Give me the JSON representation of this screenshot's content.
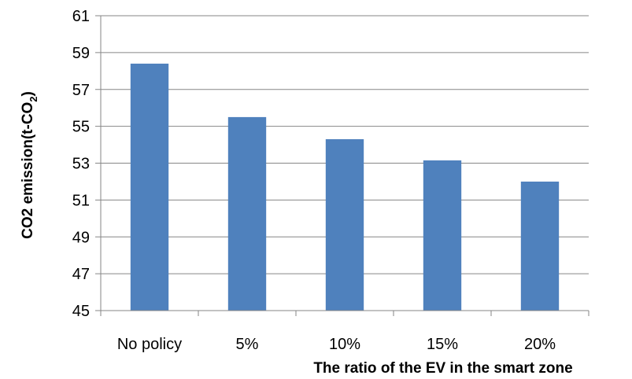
{
  "chart_data": {
    "type": "bar",
    "title": "",
    "categories": [
      "No policy",
      "5%",
      "10%",
      "15%",
      "20%"
    ],
    "values": [
      58.4,
      55.5,
      54.3,
      53.15,
      52.0
    ],
    "yticks": [
      "45",
      "47",
      "49",
      "51",
      "53",
      "55",
      "57",
      "59",
      "61"
    ],
    "xlabel": "The ratio of the EV in the smart zone",
    "ylabel": {
      "main": "CO2 emission(t-CO",
      "sub": "2",
      "end": ")"
    },
    "ylim": [
      45,
      61
    ],
    "grid": true,
    "legend": "none",
    "colors": {
      "bar": "#4f81bd",
      "grid": "#868686",
      "axis": "#868686"
    }
  }
}
